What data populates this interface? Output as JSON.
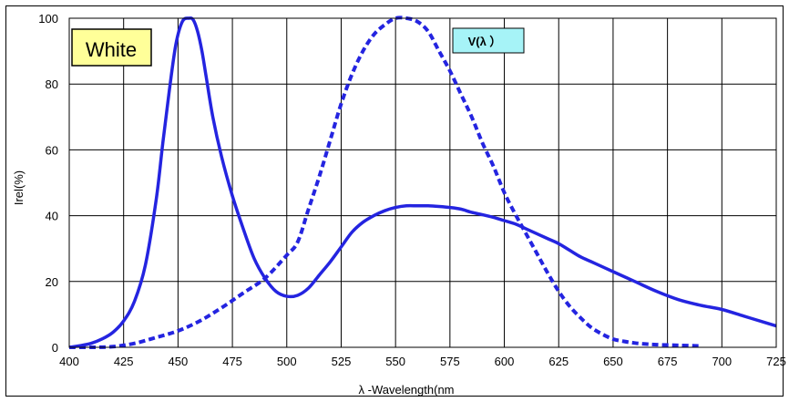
{
  "chart_data": {
    "type": "line",
    "title": "",
    "xlabel": "λ  -Wavelength(nm",
    "ylabel": "Irel(%)",
    "xlim": [
      400,
      725
    ],
    "ylim": [
      0,
      100
    ],
    "xticks": [
      400,
      425,
      450,
      475,
      500,
      525,
      550,
      575,
      600,
      625,
      650,
      675,
      700,
      725
    ],
    "yticks": [
      0,
      20,
      40,
      60,
      80,
      100
    ],
    "grid": true,
    "series_color": "#2424e0",
    "annotations": [
      {
        "text": "White",
        "fill": "#ffff99",
        "text_color": "#000000"
      },
      {
        "text": "V(λ  ）",
        "fill": "#a6f3f7",
        "text_color": "#000000"
      }
    ],
    "series": [
      {
        "style": "solid",
        "x": [
          400,
          405,
          410,
          415,
          420,
          425,
          430,
          435,
          440,
          443,
          446,
          449,
          452,
          455,
          457,
          459,
          461,
          463,
          466,
          470,
          475,
          480,
          485,
          490,
          495,
          500,
          505,
          510,
          515,
          520,
          525,
          530,
          535,
          540,
          545,
          550,
          555,
          560,
          565,
          570,
          575,
          580,
          585,
          590,
          595,
          600,
          605,
          610,
          615,
          620,
          625,
          630,
          635,
          640,
          645,
          650,
          660,
          670,
          680,
          690,
          700,
          710,
          720,
          725
        ],
        "y": [
          0,
          0.5,
          1.2,
          2.5,
          4.5,
          8,
          14,
          25,
          45,
          62,
          78,
          92,
          99,
          100,
          99.5,
          96,
          90,
          82,
          70,
          58,
          46,
          36,
          27,
          21,
          17,
          15.5,
          15.8,
          18,
          22,
          26,
          30.5,
          35,
          38,
          40,
          41.5,
          42.5,
          43,
          43,
          43,
          42.8,
          42.5,
          42,
          41,
          40.3,
          39.5,
          38.5,
          37.5,
          36,
          34.5,
          33,
          31.5,
          29.5,
          27.5,
          26,
          24.5,
          23,
          20,
          17,
          14.5,
          12.8,
          11.5,
          9.5,
          7.5,
          6.5
        ]
      },
      {
        "style": "dashed",
        "x": [
          400,
          410,
          420,
          430,
          440,
          450,
          460,
          470,
          480,
          490,
          500,
          505,
          510,
          515,
          520,
          525,
          530,
          535,
          540,
          545,
          550,
          555,
          560,
          565,
          570,
          575,
          580,
          585,
          590,
          595,
          600,
          605,
          610,
          615,
          620,
          625,
          630,
          635,
          640,
          645,
          650,
          655,
          660,
          665,
          670,
          680,
          690
        ],
        "y": [
          0,
          0,
          0.2,
          1.2,
          3,
          5,
          8,
          12,
          16.5,
          21,
          28,
          32,
          42,
          52,
          63,
          74,
          83,
          90,
          95,
          98,
          100,
          100,
          99,
          96,
          90,
          84,
          77,
          70,
          62,
          55,
          47,
          40.5,
          34.5,
          28.5,
          22.5,
          17,
          12.5,
          9,
          6,
          4,
          2.5,
          1.8,
          1.3,
          1,
          0.8,
          0.6,
          0.4
        ]
      }
    ]
  }
}
